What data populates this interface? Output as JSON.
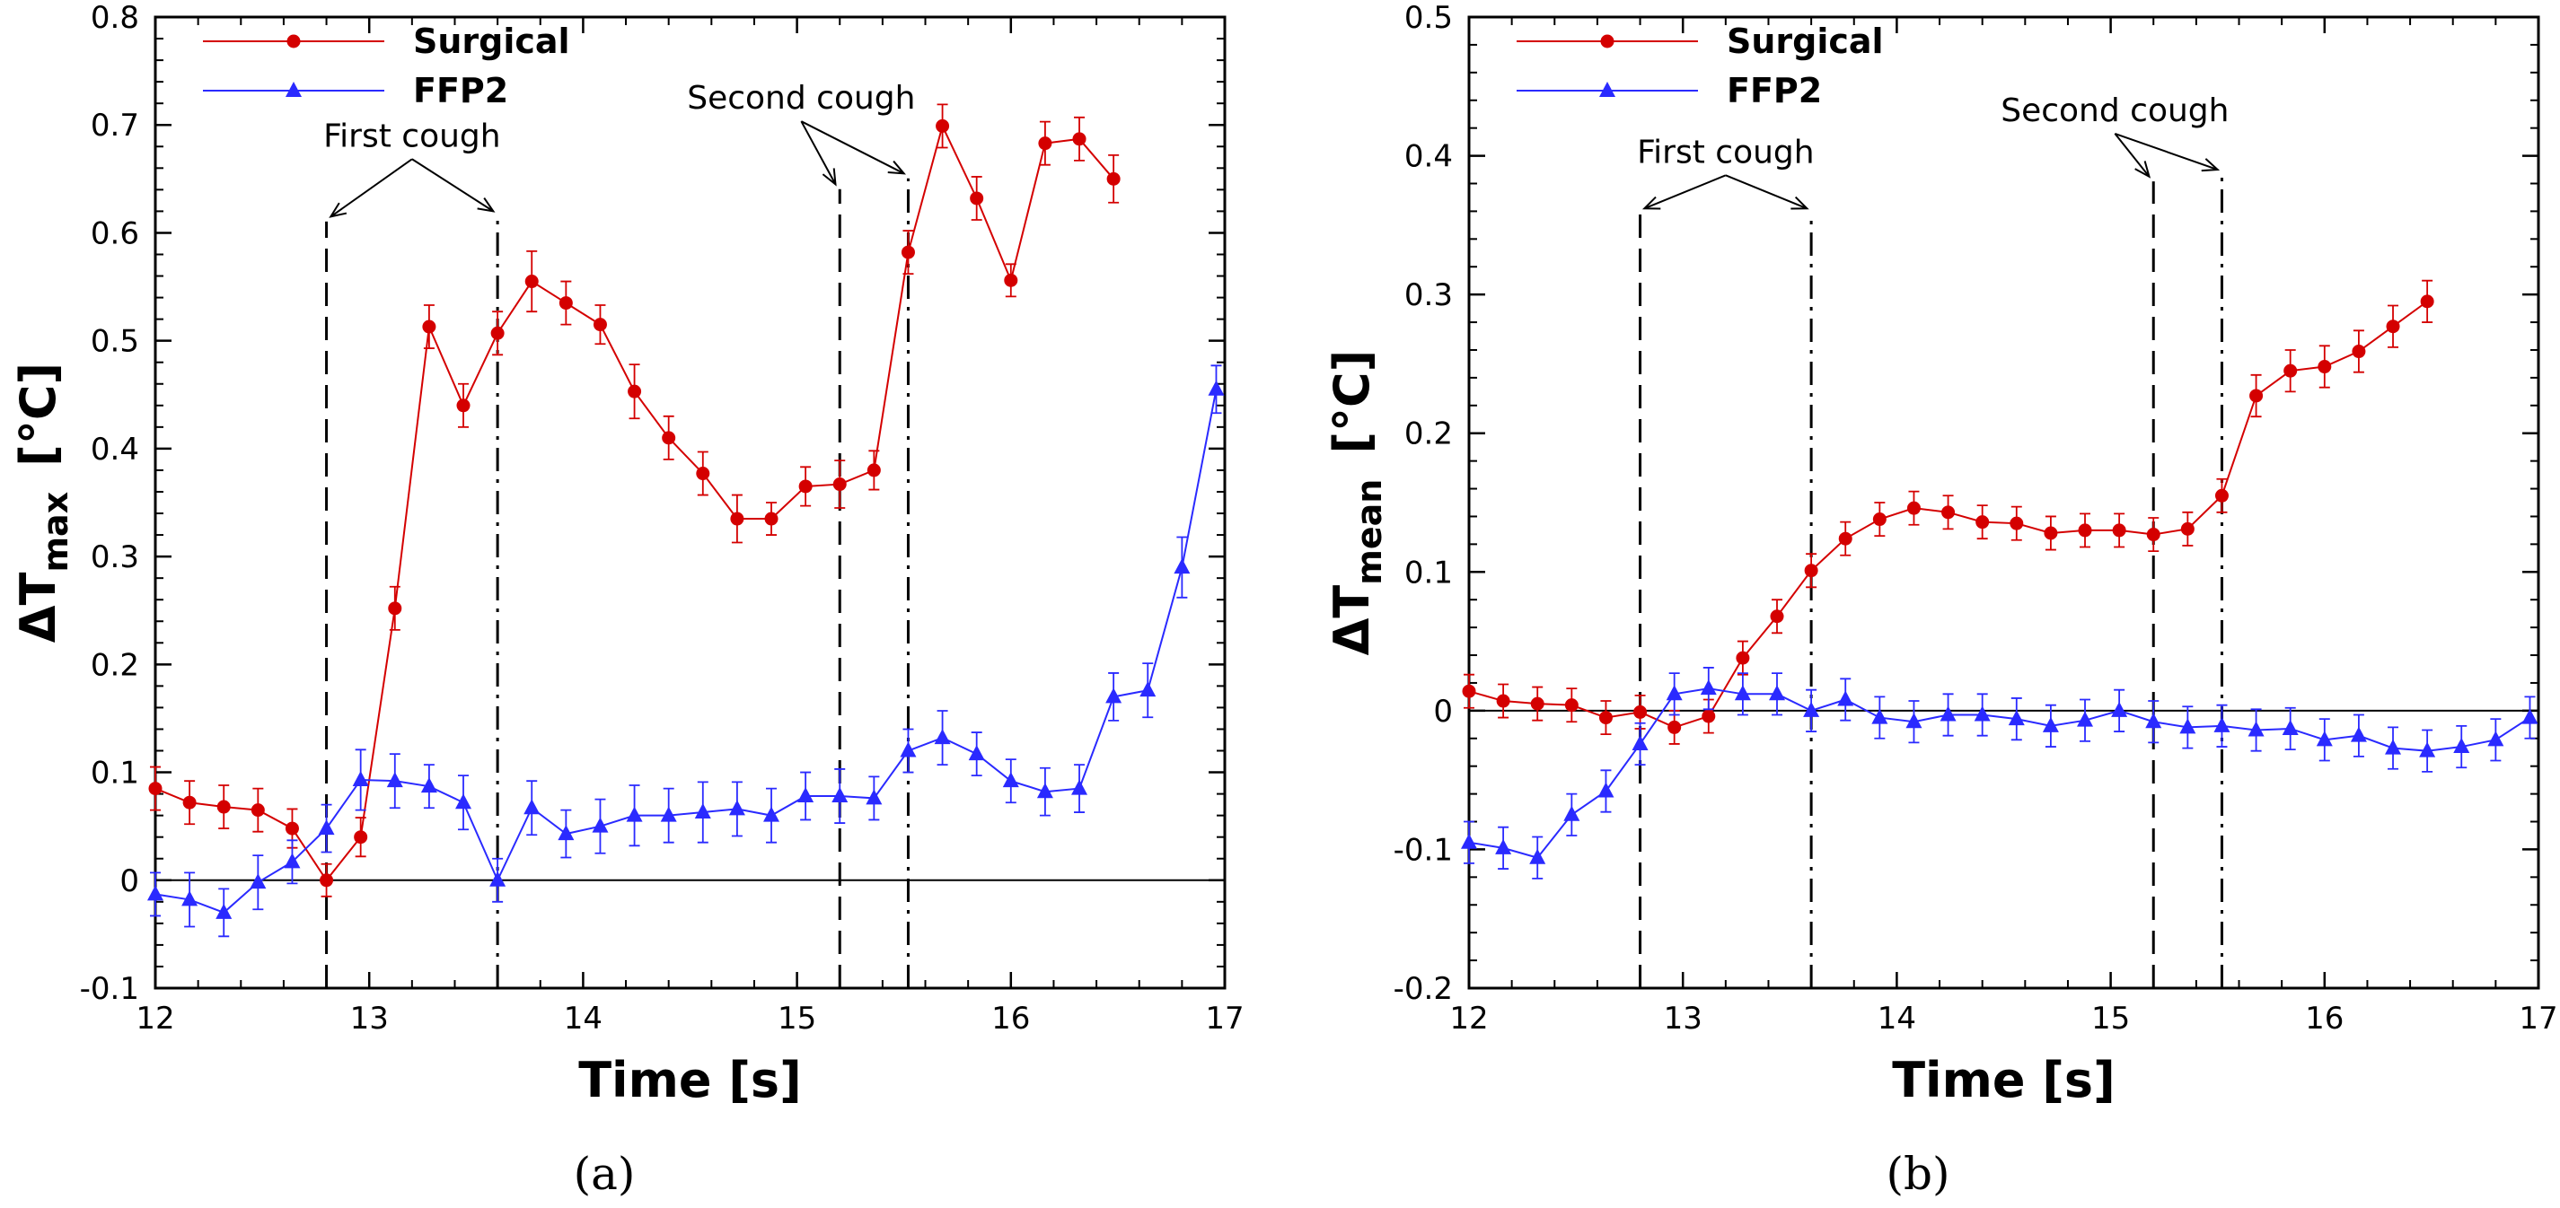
{
  "colors": {
    "surgical": "#d40000",
    "ffp2": "#2a2aff",
    "axis": "#000000"
  },
  "chart_data": [
    {
      "type": "line",
      "panel_label": "(a)",
      "ylabel_main": "ΔT",
      "ylabel_sub": "max",
      "ylabel_unit": "[°C]",
      "xlabel": "Time  [s]",
      "xlim": [
        12,
        17
      ],
      "ylim": [
        -0.1,
        0.8
      ],
      "xticks": [
        12,
        13,
        14,
        15,
        16,
        17
      ],
      "yticks": [
        -0.1,
        0,
        0.1,
        0.2,
        0.3,
        0.4,
        0.5,
        0.6,
        0.7,
        0.8
      ],
      "ytick_labels": [
        "-0.1",
        "0",
        "0.1",
        "0.2",
        "0.3",
        "0.4",
        "0.5",
        "0.6",
        "0.7",
        "0.8"
      ],
      "zero_line": 0,
      "legend": [
        "Surgical",
        "FFP2"
      ],
      "vlines": [
        {
          "x": 12.8,
          "style": "dashed"
        },
        {
          "x": 13.6,
          "style": "dashdot"
        },
        {
          "x": 15.2,
          "style": "dashed"
        },
        {
          "x": 15.52,
          "style": "dashdot"
        }
      ],
      "annotations": [
        {
          "text": "First cough",
          "x": 13.2,
          "y": 0.68,
          "arrows": [
            [
              12.82,
              0.615
            ],
            [
              13.58,
              0.62
            ]
          ]
        },
        {
          "text": "Second cough",
          "x": 15.02,
          "y": 0.715,
          "arrows": [
            [
              15.18,
              0.645
            ],
            [
              15.5,
              0.655
            ]
          ]
        }
      ],
      "series": [
        {
          "name": "Surgical",
          "marker": "circle",
          "x": [
            12.0,
            12.16,
            12.32,
            12.48,
            12.64,
            12.8,
            12.96,
            13.12,
            13.28,
            13.44,
            13.6,
            13.76,
            13.92,
            14.08,
            14.24,
            14.4,
            14.56,
            14.72,
            14.88,
            15.04,
            15.2,
            15.36,
            15.52,
            15.68,
            15.84,
            16.0,
            16.16,
            16.32,
            16.48
          ],
          "y": [
            0.085,
            0.072,
            0.068,
            0.065,
            0.048,
            0.0,
            0.04,
            0.252,
            0.513,
            0.44,
            0.507,
            0.555,
            0.535,
            0.515,
            0.453,
            0.41,
            0.377,
            0.335,
            0.335,
            0.365,
            0.367,
            0.38,
            0.582,
            0.699,
            0.632,
            0.556,
            0.683,
            0.687,
            0.65
          ],
          "err": [
            0.02,
            0.02,
            0.02,
            0.02,
            0.018,
            0.015,
            0.018,
            0.02,
            0.02,
            0.02,
            0.02,
            0.028,
            0.02,
            0.018,
            0.025,
            0.02,
            0.02,
            0.022,
            0.015,
            0.018,
            0.022,
            0.018,
            0.02,
            0.02,
            0.02,
            0.015,
            0.02,
            0.02,
            0.022
          ]
        },
        {
          "name": "FFP2",
          "marker": "triangle",
          "x": [
            12.0,
            12.16,
            12.32,
            12.48,
            12.64,
            12.8,
            12.96,
            13.12,
            13.28,
            13.44,
            13.6,
            13.76,
            13.92,
            14.08,
            14.24,
            14.4,
            14.56,
            14.72,
            14.88,
            15.04,
            15.2,
            15.36,
            15.52,
            15.68,
            15.84,
            16.0,
            16.16,
            16.32,
            16.48,
            16.64,
            16.8,
            16.96
          ],
          "y": [
            -0.013,
            -0.018,
            -0.03,
            -0.002,
            0.017,
            0.048,
            0.093,
            0.092,
            0.087,
            0.072,
            0.0,
            0.067,
            0.043,
            0.05,
            0.06,
            0.06,
            0.063,
            0.066,
            0.06,
            0.078,
            0.078,
            0.076,
            0.12,
            0.132,
            0.117,
            0.092,
            0.082,
            0.085,
            0.17,
            0.176,
            0.29,
            0.455
          ],
          "err": [
            0.02,
            0.025,
            0.022,
            0.025,
            0.02,
            0.022,
            0.028,
            0.025,
            0.02,
            0.025,
            0.02,
            0.025,
            0.022,
            0.025,
            0.028,
            0.025,
            0.028,
            0.025,
            0.025,
            0.022,
            0.025,
            0.02,
            0.02,
            0.025,
            0.02,
            0.02,
            0.022,
            0.022,
            0.022,
            0.025,
            0.028,
            0.022
          ]
        }
      ]
    },
    {
      "type": "line",
      "panel_label": "(b)",
      "ylabel_main": "ΔT",
      "ylabel_sub": "mean",
      "ylabel_unit": "[°C]",
      "xlabel": "Time  [s]",
      "xlim": [
        12,
        17
      ],
      "ylim": [
        -0.2,
        0.5
      ],
      "xticks": [
        12,
        13,
        14,
        15,
        16,
        17
      ],
      "yticks": [
        -0.2,
        -0.1,
        0,
        0.1,
        0.2,
        0.3,
        0.4,
        0.5
      ],
      "ytick_labels": [
        "-0.2",
        "-0.1",
        "0",
        "0.1",
        "0.2",
        "0.3",
        "0.4",
        "0.5"
      ],
      "zero_line": 0,
      "legend": [
        "Surgical",
        "FFP2"
      ],
      "vlines": [
        {
          "x": 12.8,
          "style": "dashed"
        },
        {
          "x": 13.6,
          "style": "dashdot"
        },
        {
          "x": 15.2,
          "style": "dashed"
        },
        {
          "x": 15.52,
          "style": "dashdot"
        }
      ],
      "annotations": [
        {
          "text": "First cough",
          "x": 13.2,
          "y": 0.395,
          "arrows": [
            [
              12.82,
              0.362
            ],
            [
              13.58,
              0.362
            ]
          ]
        },
        {
          "text": "Second cough",
          "x": 15.02,
          "y": 0.425,
          "arrows": [
            [
              15.18,
              0.385
            ],
            [
              15.5,
              0.39
            ]
          ]
        }
      ],
      "series": [
        {
          "name": "Surgical",
          "marker": "circle",
          "x": [
            12.0,
            12.16,
            12.32,
            12.48,
            12.64,
            12.8,
            12.96,
            13.12,
            13.28,
            13.44,
            13.6,
            13.76,
            13.92,
            14.08,
            14.24,
            14.4,
            14.56,
            14.72,
            14.88,
            15.04,
            15.2,
            15.36,
            15.52,
            15.68,
            15.84,
            16.0,
            16.16,
            16.32,
            16.48
          ],
          "y": [
            0.014,
            0.007,
            0.005,
            0.004,
            -0.005,
            -0.001,
            -0.012,
            -0.004,
            0.038,
            0.068,
            0.101,
            0.124,
            0.138,
            0.146,
            0.143,
            0.136,
            0.135,
            0.128,
            0.13,
            0.13,
            0.127,
            0.131,
            0.155,
            0.227,
            0.245,
            0.248,
            0.259,
            0.277,
            0.295
          ],
          "err": [
            0.012,
            0.012,
            0.012,
            0.012,
            0.012,
            0.012,
            0.012,
            0.012,
            0.012,
            0.012,
            0.012,
            0.012,
            0.012,
            0.012,
            0.012,
            0.012,
            0.012,
            0.012,
            0.012,
            0.012,
            0.012,
            0.012,
            0.012,
            0.015,
            0.015,
            0.015,
            0.015,
            0.015,
            0.015
          ]
        },
        {
          "name": "FFP2",
          "marker": "triangle",
          "x": [
            12.0,
            12.16,
            12.32,
            12.48,
            12.64,
            12.8,
            12.96,
            13.12,
            13.28,
            13.44,
            13.6,
            13.76,
            13.92,
            14.08,
            14.24,
            14.4,
            14.56,
            14.72,
            14.88,
            15.04,
            15.2,
            15.36,
            15.52,
            15.68,
            15.84,
            16.0,
            16.16,
            16.32,
            16.48,
            16.64,
            16.8,
            16.96
          ],
          "y": [
            -0.095,
            -0.099,
            -0.106,
            -0.075,
            -0.058,
            -0.024,
            0.012,
            0.016,
            0.012,
            0.012,
            0.0,
            0.008,
            -0.005,
            -0.008,
            -0.003,
            -0.003,
            -0.006,
            -0.011,
            -0.007,
            0.0,
            -0.008,
            -0.012,
            -0.011,
            -0.014,
            -0.013,
            -0.021,
            -0.018,
            -0.027,
            -0.029,
            -0.026,
            -0.021,
            -0.005
          ],
          "err": [
            0.015,
            0.015,
            0.015,
            0.015,
            0.015,
            0.015,
            0.015,
            0.015,
            0.015,
            0.015,
            0.015,
            0.015,
            0.015,
            0.015,
            0.015,
            0.015,
            0.015,
            0.015,
            0.015,
            0.015,
            0.015,
            0.015,
            0.015,
            0.015,
            0.015,
            0.015,
            0.015,
            0.015,
            0.015,
            0.015,
            0.015,
            0.015
          ]
        }
      ]
    }
  ]
}
